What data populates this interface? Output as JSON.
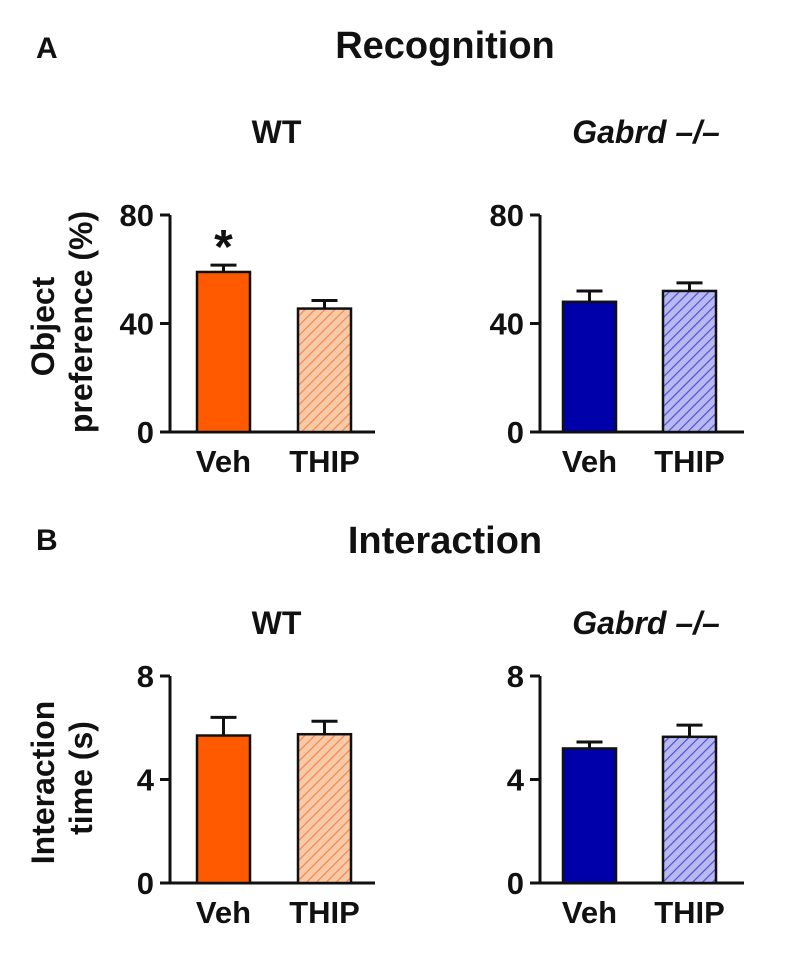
{
  "panels": [
    {
      "letter": "A",
      "title": "Recognition",
      "ylabel": [
        "Object",
        "preference (%)"
      ]
    },
    {
      "letter": "B",
      "title": "Interaction",
      "ylabel": [
        "Interaction",
        "time (s)"
      ]
    }
  ],
  "colors": {
    "wt_fill": "#ff5a00",
    "wt_thip_fill": "#f5b48a",
    "ko_fill": "#0000aa",
    "ko_thip_fill": "#8f8fe6",
    "ink": "#111111"
  },
  "chart_data": [
    {
      "type": "bar",
      "panel": "A",
      "title": "WT",
      "title_italic": false,
      "categories": [
        "Veh",
        "THIP"
      ],
      "values": [
        59,
        45.5
      ],
      "errors": [
        2.5,
        3
      ],
      "hatched": [
        false,
        true
      ],
      "colors": [
        "#ff5a00",
        "#f5b48a"
      ],
      "edge": "#b03a00",
      "yticks": [
        "0",
        "40",
        "80"
      ],
      "ylim": [
        0,
        80
      ],
      "annotations": [
        "*",
        ""
      ],
      "ylabel": "Object preference (%)"
    },
    {
      "type": "bar",
      "panel": "A",
      "title": "Gabrd –/–",
      "title_italic": true,
      "categories": [
        "Veh",
        "THIP"
      ],
      "values": [
        48,
        52
      ],
      "errors": [
        4,
        3
      ],
      "hatched": [
        false,
        true
      ],
      "colors": [
        "#0000aa",
        "#8f8fe6"
      ],
      "edge": "#000066",
      "yticks": [
        "0",
        "40",
        "80"
      ],
      "ylim": [
        0,
        80
      ],
      "annotations": [
        "",
        ""
      ],
      "ylabel": "Object preference (%)"
    },
    {
      "type": "bar",
      "panel": "B",
      "title": "WT",
      "title_italic": false,
      "categories": [
        "Veh",
        "THIP"
      ],
      "values": [
        5.7,
        5.75
      ],
      "errors": [
        0.7,
        0.5
      ],
      "hatched": [
        false,
        true
      ],
      "colors": [
        "#ff5a00",
        "#f5b48a"
      ],
      "edge": "#b03a00",
      "yticks": [
        "0",
        "4",
        "8"
      ],
      "ylim": [
        0,
        8
      ],
      "annotations": [
        "",
        ""
      ],
      "ylabel": "Interaction time (s)"
    },
    {
      "type": "bar",
      "panel": "B",
      "title": "Gabrd –/–",
      "title_italic": true,
      "categories": [
        "Veh",
        "THIP"
      ],
      "values": [
        5.2,
        5.65
      ],
      "errors": [
        0.25,
        0.45
      ],
      "hatched": [
        false,
        true
      ],
      "colors": [
        "#0000aa",
        "#8f8fe6"
      ],
      "edge": "#000066",
      "yticks": [
        "0",
        "4",
        "8"
      ],
      "ylim": [
        0,
        8
      ],
      "annotations": [
        "",
        ""
      ],
      "ylabel": "Interaction time (s)"
    }
  ]
}
